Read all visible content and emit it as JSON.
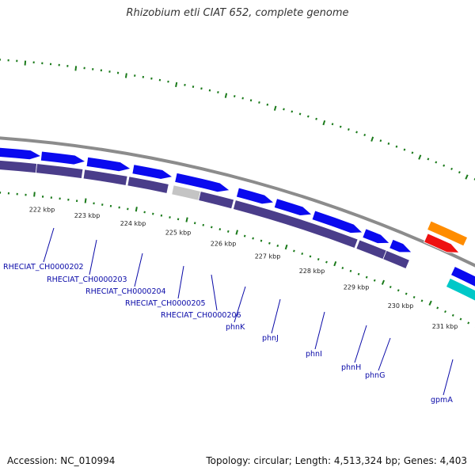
{
  "header": {
    "title": "Rhizobium etli CIAT 652, complete genome"
  },
  "footer": {
    "accession": "Accession: NC_010994",
    "topology": "Topology: circular; Length: 4,513,324 bp; Genes: 4,403"
  },
  "colors": {
    "backbone": "#8c8c8c",
    "gene_forward": "#0a0aef",
    "gene_reverse": "#4a3d8a",
    "gene_pseudo": "#c4c4c4",
    "gene_orange": "#ff8c00",
    "gene_red": "#ee1111",
    "gene_cyan": "#00c8c8",
    "tick_marks": "#1a7a1a",
    "label_text": "#0a0aa8"
  },
  "scale": {
    "tick_labels": [
      "222 kbp",
      "223 kbp",
      "224 kbp",
      "225 kbp",
      "226 kbp",
      "227 kbp",
      "228 kbp",
      "229 kbp",
      "230 kbp",
      "231 kbp"
    ]
  },
  "gene_labels": [
    "RHECIAT_CH0000202",
    "RHECIAT_CH0000203",
    "RHECIAT_CH0000204",
    "RHECIAT_CH0000205",
    "RHECIAT_CH0000206",
    "phnK",
    "phnJ",
    "phnI",
    "phnH",
    "phnG",
    "gpmA"
  ]
}
